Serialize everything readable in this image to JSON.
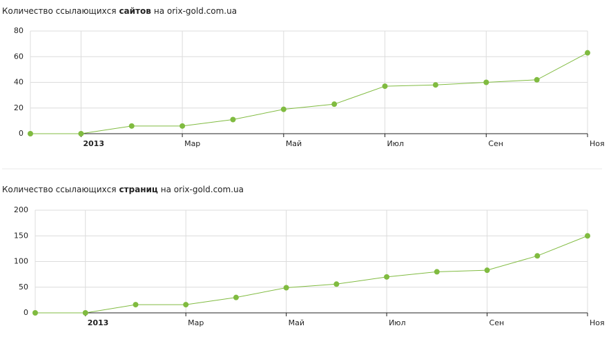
{
  "chart_data": [
    {
      "type": "line",
      "title_parts": [
        "Количество ссылающихся",
        "сайтов",
        "на orix-gold.com.ua"
      ],
      "categories": [
        null,
        "2013",
        null,
        "Мар",
        null,
        "Май",
        null,
        "Июл",
        null,
        "Сен",
        null,
        "Ноя"
      ],
      "values": [
        0,
        0,
        6,
        6,
        11,
        19,
        23,
        37,
        38,
        40,
        42,
        63
      ],
      "color": "#80bb40",
      "ylim": [
        0,
        80
      ],
      "yticks": [
        0,
        20,
        40,
        60,
        80
      ],
      "grid": true
    },
    {
      "type": "line",
      "title_parts": [
        "Количество ссылающихся",
        "страниц",
        "на orix-gold.com.ua"
      ],
      "categories": [
        null,
        "2013",
        null,
        "Мар",
        null,
        "Май",
        null,
        "Июл",
        null,
        "Сен",
        null,
        "Ноя"
      ],
      "values": [
        0,
        0,
        16,
        16,
        30,
        49,
        56,
        70,
        80,
        83,
        111,
        150
      ],
      "color": "#80bb40",
      "ylim": [
        0,
        200
      ],
      "yticks": [
        0,
        50,
        100,
        150,
        200
      ],
      "grid": true
    }
  ]
}
